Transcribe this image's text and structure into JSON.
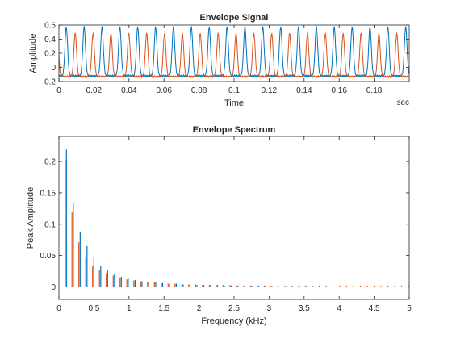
{
  "chart_data": [
    {
      "type": "line",
      "title": "Envelope Signal",
      "xlabel": "Time",
      "ylabel": "Amplitude",
      "x_unit_label": "sec",
      "xlim": [
        0,
        0.2
      ],
      "ylim": [
        -0.2,
        0.6
      ],
      "xticks": [
        0,
        0.02,
        0.04,
        0.06,
        0.08,
        0.1,
        0.12,
        0.14,
        0.16,
        0.18
      ],
      "xtick_labels": [
        "0",
        "0.02",
        "0.04",
        "0.06",
        "0.08",
        "0.1",
        "0.12",
        "0.14",
        "0.16",
        "0.18"
      ],
      "yticks": [
        -0.2,
        0,
        0.2,
        0.4,
        0.6
      ],
      "ytick_labels": [
        "-0.2",
        "0",
        "0.2",
        "0.4",
        "0.6"
      ],
      "grid": false,
      "series": [
        {
          "color": "#0072BD",
          "period": 0.0102,
          "first_peak": 0.0042,
          "peak": 0.57,
          "baseline": -0.12
        },
        {
          "color": "#D95319",
          "period": 0.0102,
          "first_peak": 0.0093,
          "peak": 0.48,
          "baseline": -0.13
        }
      ]
    },
    {
      "type": "bar",
      "title": "Envelope Spectrum",
      "xlabel": "Frequency (kHz)",
      "ylabel": "Peak Amplitude",
      "xlim": [
        0,
        5
      ],
      "ylim": [
        -0.02,
        0.24
      ],
      "xticks": [
        0,
        0.5,
        1,
        1.5,
        2,
        2.5,
        3,
        3.5,
        4,
        4.5,
        5
      ],
      "xtick_labels": [
        "0",
        "0.5",
        "1",
        "1.5",
        "2",
        "2.5",
        "3",
        "3.5",
        "4",
        "4.5",
        "5"
      ],
      "yticks": [
        0,
        0.05,
        0.1,
        0.15,
        0.2
      ],
      "ytick_labels": [
        "0",
        "0.05",
        "0.1",
        "0.15",
        "0.2"
      ],
      "grid": false,
      "series": [
        {
          "color": "#0072BD",
          "harmonic_spacing": 0.098,
          "x": [
            0.098,
            0.196,
            0.294,
            0.392,
            0.49,
            0.588,
            0.686,
            0.784,
            0.882,
            0.98,
            1.078,
            1.176,
            1.274,
            1.372,
            1.47,
            1.568,
            1.666,
            1.764,
            1.862,
            1.96,
            2.058,
            2.156,
            2.254,
            2.352,
            2.45,
            2.548,
            2.646,
            2.744,
            2.842,
            2.94,
            3.038,
            3.136,
            3.234,
            3.332,
            3.43,
            3.528,
            3.626
          ],
          "values": [
            0.219,
            0.134,
            0.087,
            0.065,
            0.046,
            0.033,
            0.026,
            0.02,
            0.016,
            0.013,
            0.011,
            0.009,
            0.008,
            0.007,
            0.006,
            0.005,
            0.005,
            0.004,
            0.004,
            0.003,
            0.003,
            0.003,
            0.003,
            0.002,
            0.002,
            0.002,
            0.002,
            0.002,
            0.002,
            0.002,
            0.001,
            0.001,
            0.001,
            0.001,
            0.001,
            0.001,
            0.001
          ]
        },
        {
          "color": "#D95319",
          "harmonic_spacing": 0.098,
          "x": [
            0.098,
            0.196,
            0.294,
            0.392,
            0.49,
            0.588,
            0.686,
            0.784,
            0.882,
            0.98,
            1.078,
            1.176,
            1.274,
            1.372,
            1.47,
            1.568,
            1.666,
            1.764,
            1.862,
            1.96,
            2.058,
            2.156,
            2.254,
            2.352,
            2.45,
            2.548,
            2.646,
            2.744,
            2.842,
            2.94,
            3.038,
            3.136,
            3.234,
            3.332,
            3.43,
            3.528,
            3.626,
            3.724,
            3.822,
            3.92,
            4.018,
            4.116,
            4.214,
            4.312,
            4.41,
            4.508,
            4.606,
            4.704,
            4.802,
            4.9,
            4.998
          ],
          "values": [
            0.202,
            0.119,
            0.071,
            0.047,
            0.033,
            0.027,
            0.022,
            0.018,
            0.015,
            0.012,
            0.01,
            0.009,
            0.008,
            0.007,
            0.006,
            0.005,
            0.005,
            0.004,
            0.004,
            0.004,
            0.003,
            0.003,
            0.003,
            0.003,
            0.003,
            0.002,
            0.002,
            0.002,
            0.002,
            0.002,
            0.002,
            0.002,
            0.002,
            0.002,
            0.002,
            0.002,
            0.002,
            0.002,
            0.002,
            0.002,
            0.002,
            0.002,
            0.002,
            0.002,
            0.002,
            0.002,
            0.002,
            0.002,
            0.002,
            0.002,
            0.002
          ]
        }
      ]
    }
  ]
}
